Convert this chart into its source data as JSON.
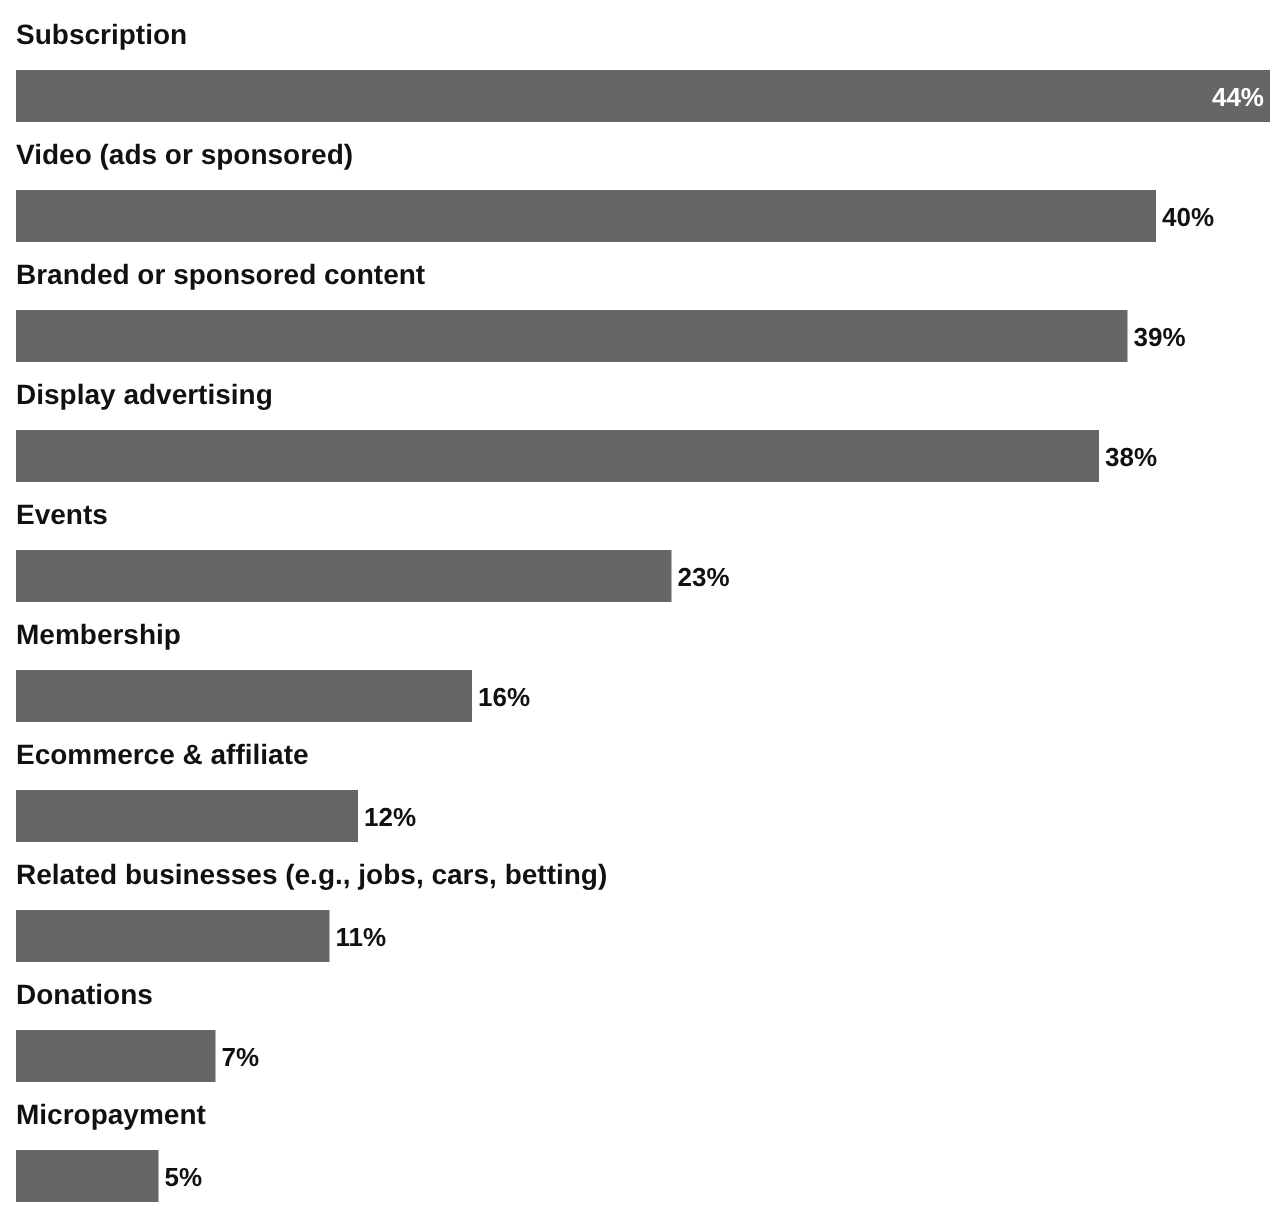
{
  "chart_data": {
    "type": "bar",
    "orientation": "horizontal",
    "color": "#666666",
    "value_labels": [
      "44%",
      "40%",
      "39%",
      "38%",
      "23%",
      "16%",
      "12%",
      "11%",
      "7%",
      "5%"
    ],
    "categories": [
      "Subscription",
      "Video (ads or sponsored)",
      "Branded or sponsored content",
      "Display advertising",
      "Events",
      "Membership",
      "Ecommerce & affiliate",
      "Related businesses (e.g., jobs, cars, betting)",
      "Donations",
      "Micropayment"
    ],
    "values": [
      44,
      40,
      39,
      38,
      23,
      16,
      12,
      11,
      7,
      5
    ]
  }
}
